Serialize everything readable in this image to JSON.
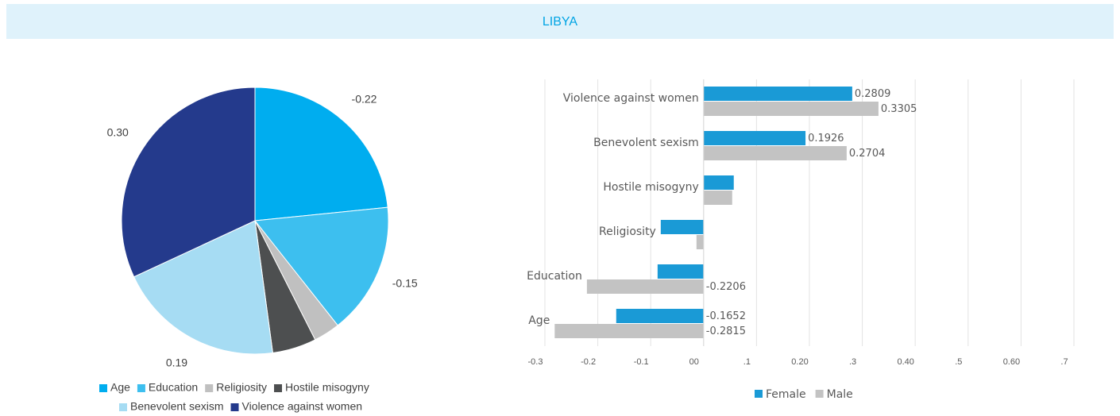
{
  "header": {
    "title": "LIBYA"
  },
  "chart_data": [
    {
      "type": "pie",
      "categories": [
        "Age",
        "Education",
        "Religiosity",
        "Hostile misogyny",
        "Benevolent sexism",
        "Violence against women"
      ],
      "values": [
        -0.22,
        -0.15,
        -0.03,
        0.05,
        0.19,
        0.3
      ],
      "value_labels": [
        "-0.22",
        "-0.15",
        null,
        null,
        "0.19",
        "0.30"
      ],
      "colors": [
        "#00adef",
        "#3dbfef",
        "#c0c0c0",
        "#4d4f50",
        "#a6dcf3",
        "#243a8c"
      ],
      "legend": "bottom"
    },
    {
      "type": "bar",
      "orientation": "horizontal",
      "categories": [
        "Age",
        "Education",
        "Religiosity",
        "Hostile misogyny",
        "Benevolent sexism",
        "Violence against women"
      ],
      "series": [
        {
          "name": "Female",
          "color": "#1a9ad6",
          "values": [
            -0.1652,
            -0.087,
            -0.081,
            0.057,
            0.1926,
            0.2809
          ],
          "value_labels": [
            "-0.1652",
            null,
            null,
            null,
            "0.1926",
            "0.2809"
          ]
        },
        {
          "name": "Male",
          "color": "#c3c3c3",
          "values": [
            -0.2815,
            -0.2206,
            -0.0135,
            0.054,
            0.2704,
            0.3305
          ],
          "value_labels": [
            "-0.2815",
            "-0.2206",
            null,
            null,
            "0.2704",
            "0.3305"
          ]
        }
      ],
      "xlim": [
        -0.3,
        0.7
      ],
      "xticks": [
        -0.3,
        -0.2,
        -0.1,
        {
          "value": 0,
          "label": "00"
        },
        {
          "value": 0.1,
          "label": ".1"
        },
        {
          "value": 0.2,
          "label": "0.20"
        },
        {
          "value": 0.3,
          "label": ".3"
        },
        {
          "value": 0.4,
          "label": "0.40"
        },
        {
          "value": 0.5,
          "label": ".5"
        },
        {
          "value": 0.6,
          "label": "0.60"
        },
        {
          "value": 0.7,
          "label": ".7"
        }
      ],
      "grid": true,
      "legend": "bottom"
    }
  ]
}
